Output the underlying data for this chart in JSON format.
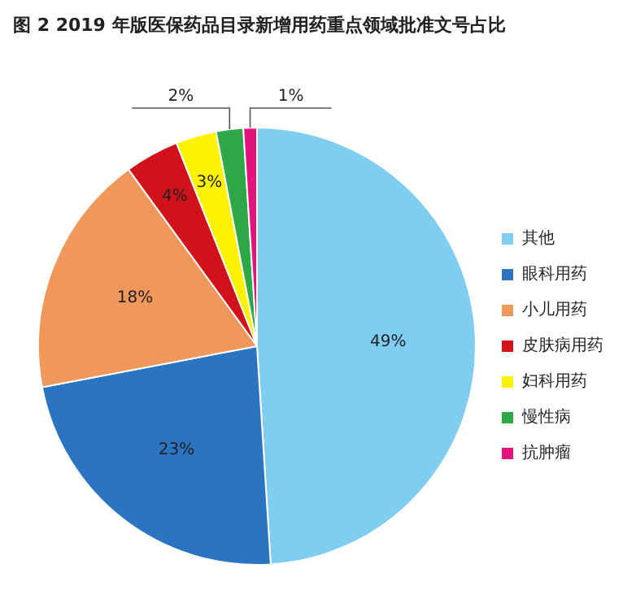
{
  "chart_data": {
    "type": "pie",
    "title": "图 2  2019 年版医保药品目录新增用药重点领域批准文号占比",
    "categories": [
      "其他",
      "眼科用药",
      "小儿用药",
      "皮肤病用药",
      "妇科用药",
      "慢性病",
      "抗肿瘤"
    ],
    "values": [
      49,
      23,
      18,
      4,
      3,
      2,
      1
    ],
    "colors": [
      "#7fcdf1",
      "#2b74c2",
      "#f0975c",
      "#d0121b",
      "#fff200",
      "#2ea846",
      "#e4127d"
    ],
    "value_labels": [
      "49%",
      "23%",
      "18%",
      "4%",
      "3%",
      "2%",
      "1%"
    ],
    "legend": "right"
  }
}
